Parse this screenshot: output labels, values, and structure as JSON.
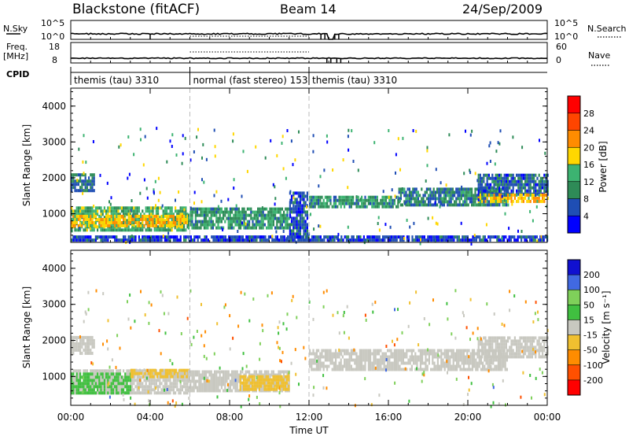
{
  "header": {
    "station": "Blackstone (fitACF)",
    "beam": "Beam 14",
    "date": "24/Sep/2009"
  },
  "panels": {
    "nsky": {
      "left_label": "N.Sky",
      "right_label": "N.Search",
      "left_ticks": [
        "10^5",
        "10^0"
      ],
      "right_ticks": [
        "10^5",
        "10^0"
      ]
    },
    "freq": {
      "left_label": "Freq.",
      "left_unit": "[MHz]",
      "right_label": "Nave",
      "left_ticks": [
        "18",
        "8"
      ],
      "right_ticks": [
        "60",
        "0"
      ]
    },
    "cpid": {
      "label": "CPID",
      "segments": [
        {
          "name": "themis (tau) 3310",
          "start_h": 0.0,
          "end_h": 6.0
        },
        {
          "name": "normal (fast stereo) 153",
          "start_h": 6.0,
          "end_h": 12.0
        },
        {
          "name": "themis (tau) 3310",
          "start_h": 12.0,
          "end_h": 24.0
        }
      ]
    }
  },
  "colors": {
    "power": [
      "#0000ff",
      "#1f4eb4",
      "#2e8b57",
      "#3cb371",
      "#ffd700",
      "#ff8c00",
      "#ff4500",
      "#ff0000"
    ],
    "velocity": [
      "#1010d0",
      "#4169e1",
      "#7fd05a",
      "#40c040",
      "#c8c8c0",
      "#f0c030",
      "#ff8c00",
      "#ff5000",
      "#ff0000"
    ]
  },
  "chart_data": [
    {
      "type": "heatmap",
      "name": "power",
      "xlabel": "Time UT",
      "ylabel": "Slant Range [km]",
      "xlim": [
        0,
        24
      ],
      "ylim": [
        200,
        4500
      ],
      "x_ticks": [
        "00:00",
        "04:00",
        "08:00",
        "12:00",
        "16:00",
        "20:00",
        "00:00"
      ],
      "y_ticks": [
        1000,
        2000,
        3000,
        4000
      ],
      "colorbar": {
        "label": "Power [dB]",
        "range": [
          0,
          32
        ],
        "ticks": [
          "4",
          "8",
          "12",
          "16",
          "20",
          "24",
          "28"
        ]
      },
      "regions": [
        {
          "t0": 0.0,
          "t1": 5.9,
          "r0": 500,
          "r1": 1150,
          "value": 13
        },
        {
          "t0": 0.0,
          "t1": 5.9,
          "r0": 620,
          "r1": 950,
          "value": 19
        },
        {
          "t0": 5.9,
          "t1": 11.0,
          "r0": 560,
          "r1": 1100,
          "value": 11
        },
        {
          "t0": 11.0,
          "t1": 11.9,
          "r0": 300,
          "r1": 1600,
          "value": 6
        },
        {
          "t0": 12.0,
          "t1": 16.5,
          "r0": 1150,
          "r1": 1500,
          "value": 11
        },
        {
          "t0": 16.5,
          "t1": 22.0,
          "r0": 1200,
          "r1": 1700,
          "value": 9
        },
        {
          "t0": 20.5,
          "t1": 24.0,
          "r0": 1500,
          "r1": 2100,
          "value": 7
        },
        {
          "t0": 20.5,
          "t1": 24.0,
          "r0": 1300,
          "r1": 1500,
          "value": 19
        },
        {
          "t0": 0.0,
          "t1": 1.2,
          "r0": 1600,
          "r1": 2100,
          "value": 8
        },
        {
          "t0": 0.0,
          "t1": 24.0,
          "r0": 220,
          "r1": 320,
          "value": 5
        }
      ]
    },
    {
      "type": "heatmap",
      "name": "velocity",
      "xlabel": "Time UT",
      "ylabel": "Slant Range [km]",
      "xlim": [
        0,
        24
      ],
      "ylim": [
        200,
        4500
      ],
      "x_ticks": [
        "00:00",
        "04:00",
        "08:00",
        "12:00",
        "16:00",
        "20:00",
        "00:00"
      ],
      "y_ticks": [
        1000,
        2000,
        3000,
        4000
      ],
      "colorbar": {
        "label": "Velocity [m s⁻¹]",
        "range": [
          -250,
          250
        ],
        "ticks": [
          "200",
          "100",
          "50",
          "15",
          "-15",
          "-50",
          "-100",
          "-200"
        ]
      },
      "regions": [
        {
          "t0": 0.0,
          "t1": 5.9,
          "r0": 500,
          "r1": 1150,
          "value": 0
        },
        {
          "t0": 0.0,
          "t1": 3.0,
          "r0": 500,
          "r1": 1050,
          "value": 40
        },
        {
          "t0": 3.0,
          "t1": 5.9,
          "r0": 950,
          "r1": 1150,
          "value": -40
        },
        {
          "t0": 5.9,
          "t1": 11.0,
          "r0": 560,
          "r1": 1100,
          "value": 0
        },
        {
          "t0": 8.5,
          "t1": 11.0,
          "r0": 600,
          "r1": 1000,
          "value": -60
        },
        {
          "t0": 12.0,
          "t1": 22.0,
          "r0": 1150,
          "r1": 1700,
          "value": 0
        },
        {
          "t0": 20.5,
          "t1": 24.0,
          "r0": 1500,
          "r1": 2100,
          "value": 0
        },
        {
          "t0": 0.0,
          "t1": 1.2,
          "r0": 1600,
          "r1": 2100,
          "value": 0
        }
      ]
    }
  ]
}
